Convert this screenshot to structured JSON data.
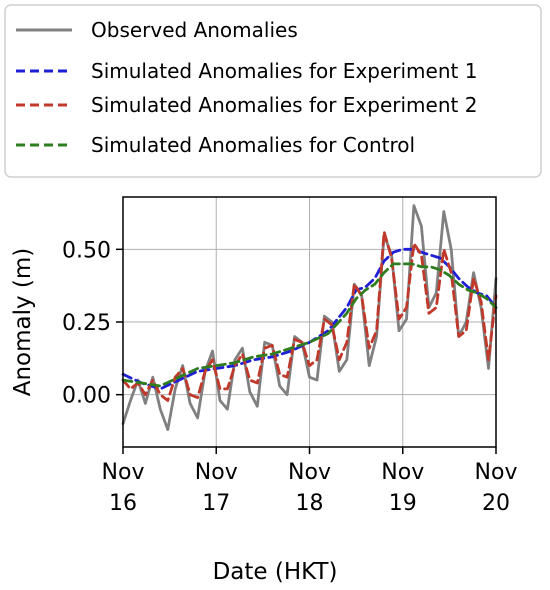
{
  "chart_data": {
    "type": "line",
    "title": "",
    "xlabel": "Date (HKT)",
    "ylabel": "Anomaly (m)",
    "xlim": [
      16,
      20
    ],
    "ylim": [
      -0.18,
      0.68
    ],
    "x_ticks": [
      {
        "value": 16,
        "line1": "Nov",
        "line2": "16"
      },
      {
        "value": 17,
        "line1": "Nov",
        "line2": "17"
      },
      {
        "value": 18,
        "line1": "Nov",
        "line2": "18"
      },
      {
        "value": 19,
        "line1": "Nov",
        "line2": "19"
      },
      {
        "value": 20,
        "line1": "Nov",
        "line2": "20"
      }
    ],
    "y_ticks": [
      {
        "value": 0.0,
        "label": "0.00"
      },
      {
        "value": 0.25,
        "label": "0.25"
      },
      {
        "value": 0.5,
        "label": "0.50"
      }
    ],
    "grid": true,
    "legend_position": "top",
    "series": [
      {
        "name": "Observed Anomalies",
        "color": "#808080",
        "dash": "solid",
        "x": [
          16.0,
          16.08,
          16.16,
          16.24,
          16.32,
          16.4,
          16.48,
          16.56,
          16.64,
          16.72,
          16.8,
          16.88,
          16.96,
          17.04,
          17.12,
          17.2,
          17.28,
          17.36,
          17.44,
          17.52,
          17.6,
          17.68,
          17.76,
          17.84,
          17.92,
          18.0,
          18.08,
          18.16,
          18.24,
          18.32,
          18.4,
          18.48,
          18.56,
          18.64,
          18.72,
          18.8,
          18.88,
          18.96,
          19.04,
          19.12,
          19.2,
          19.28,
          19.36,
          19.44,
          19.52,
          19.6,
          19.68,
          19.76,
          19.84,
          19.92,
          20.0
        ],
        "y": [
          -0.1,
          -0.02,
          0.05,
          -0.03,
          0.06,
          -0.05,
          -0.12,
          0.02,
          0.1,
          -0.03,
          -0.08,
          0.08,
          0.15,
          -0.02,
          -0.05,
          0.12,
          0.16,
          0.01,
          -0.04,
          0.18,
          0.17,
          0.03,
          0.0,
          0.2,
          0.18,
          0.06,
          0.05,
          0.27,
          0.25,
          0.08,
          0.12,
          0.38,
          0.34,
          0.1,
          0.2,
          0.55,
          0.48,
          0.22,
          0.26,
          0.65,
          0.58,
          0.3,
          0.35,
          0.63,
          0.5,
          0.2,
          0.25,
          0.42,
          0.3,
          0.09,
          0.4
        ]
      },
      {
        "name": "Simulated Anomalies for Experiment 1",
        "color": "#1f1fd6",
        "dash": "dashed",
        "x": [
          16.0,
          16.2,
          16.4,
          16.6,
          16.8,
          17.0,
          17.2,
          17.4,
          17.6,
          17.8,
          18.0,
          18.2,
          18.4,
          18.5,
          18.6,
          18.7,
          18.8,
          18.9,
          19.0,
          19.1,
          19.2,
          19.3,
          19.4,
          19.5,
          19.6,
          19.7,
          19.8,
          19.9,
          20.0
        ],
        "y": [
          0.07,
          0.04,
          0.02,
          0.05,
          0.08,
          0.09,
          0.1,
          0.12,
          0.13,
          0.15,
          0.18,
          0.22,
          0.3,
          0.36,
          0.37,
          0.4,
          0.46,
          0.49,
          0.5,
          0.5,
          0.49,
          0.48,
          0.47,
          0.44,
          0.4,
          0.37,
          0.35,
          0.34,
          0.3
        ]
      },
      {
        "name": "Simulated Anomalies for Experiment 2",
        "color": "#c0392b",
        "dash": "dashed",
        "x": [
          16.0,
          16.08,
          16.16,
          16.24,
          16.32,
          16.4,
          16.48,
          16.56,
          16.64,
          16.72,
          16.8,
          16.88,
          16.96,
          17.04,
          17.12,
          17.2,
          17.28,
          17.36,
          17.44,
          17.52,
          17.6,
          17.68,
          17.76,
          17.84,
          17.92,
          18.0,
          18.08,
          18.16,
          18.24,
          18.32,
          18.4,
          18.48,
          18.56,
          18.64,
          18.72,
          18.8,
          18.88,
          18.96,
          19.04,
          19.12,
          19.2,
          19.28,
          19.36,
          19.44,
          19.52,
          19.6,
          19.68,
          19.76,
          19.84,
          19.92,
          20.0
        ],
        "y": [
          0.05,
          0.02,
          0.04,
          0.0,
          0.05,
          0.0,
          -0.02,
          0.06,
          0.09,
          0.0,
          -0.01,
          0.08,
          0.12,
          0.02,
          0.02,
          0.1,
          0.14,
          0.05,
          0.04,
          0.16,
          0.17,
          0.07,
          0.06,
          0.19,
          0.18,
          0.1,
          0.12,
          0.26,
          0.24,
          0.12,
          0.18,
          0.38,
          0.34,
          0.16,
          0.22,
          0.56,
          0.47,
          0.26,
          0.3,
          0.52,
          0.48,
          0.28,
          0.3,
          0.5,
          0.42,
          0.2,
          0.22,
          0.4,
          0.32,
          0.12,
          0.34
        ]
      },
      {
        "name": "Simulated Anomalies for Control",
        "color": "#2e7d1e",
        "dash": "dashed",
        "x": [
          16.0,
          16.2,
          16.4,
          16.6,
          16.8,
          17.0,
          17.2,
          17.4,
          17.6,
          17.8,
          18.0,
          18.2,
          18.4,
          18.5,
          18.6,
          18.7,
          18.8,
          18.9,
          19.0,
          19.1,
          19.2,
          19.3,
          19.4,
          19.5,
          19.6,
          19.7,
          19.8,
          19.9,
          20.0
        ],
        "y": [
          0.05,
          0.04,
          0.03,
          0.06,
          0.09,
          0.1,
          0.11,
          0.13,
          0.14,
          0.16,
          0.18,
          0.21,
          0.28,
          0.33,
          0.36,
          0.38,
          0.42,
          0.45,
          0.45,
          0.45,
          0.44,
          0.44,
          0.43,
          0.41,
          0.38,
          0.36,
          0.35,
          0.33,
          0.3
        ]
      }
    ]
  }
}
